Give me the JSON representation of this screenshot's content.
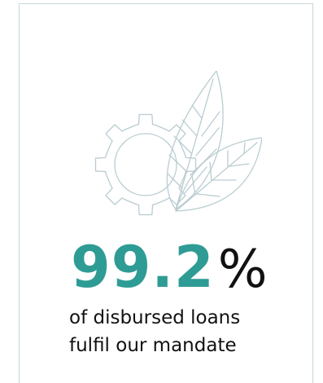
{
  "stat": {
    "value": "99.2",
    "unit": "%"
  },
  "caption": {
    "line1": "of disbursed loans",
    "line2": "fulfil our mandate"
  },
  "icons": [
    "gear-icon",
    "leaf-icon"
  ],
  "colors": {
    "accent": "#2e9c94",
    "text": "#111111",
    "outline": "#c7d6db"
  }
}
